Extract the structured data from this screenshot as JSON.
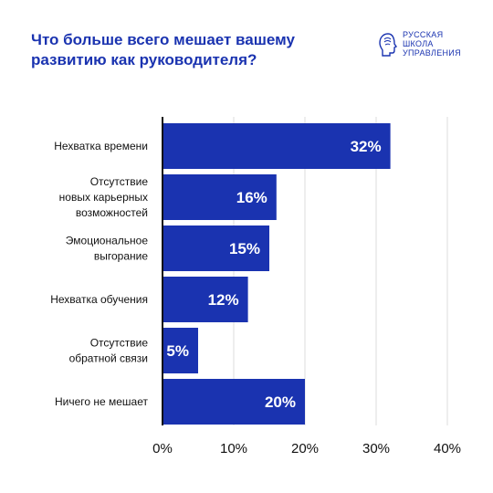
{
  "title": "Что больше всего мешает вашему развитию как руководителя?",
  "logo": {
    "lines": [
      "РУССКАЯ",
      "ШКОЛА",
      "УПРАВЛЕНИЯ"
    ],
    "icon": "head-profile-logo-icon"
  },
  "colors": {
    "bar": "#1a33b0",
    "title": "#1a33b0",
    "axis": "#111111",
    "grid": "#dddddd",
    "label": "#111111",
    "value": "#ffffff"
  },
  "chart_data": {
    "type": "bar",
    "orientation": "horizontal",
    "categories": [
      [
        "Нехватка времени"
      ],
      [
        "Отсутствие",
        "новых карьерных",
        "возможностей"
      ],
      [
        "Эмоциональное",
        "выгорание"
      ],
      [
        "Нехватка обучения"
      ],
      [
        "Отсутствие",
        "обратной связи"
      ],
      [
        "Ничего не мешает"
      ]
    ],
    "values": [
      32,
      16,
      15,
      12,
      5,
      20
    ],
    "value_labels": [
      "32%",
      "16%",
      "15%",
      "12%",
      "5%",
      "20%"
    ],
    "xlim": [
      0,
      40
    ],
    "x_ticks": [
      0,
      10,
      20,
      30,
      40
    ],
    "x_tick_labels": [
      "0%",
      "10%",
      "20%",
      "30%",
      "40%"
    ],
    "grid": true
  }
}
